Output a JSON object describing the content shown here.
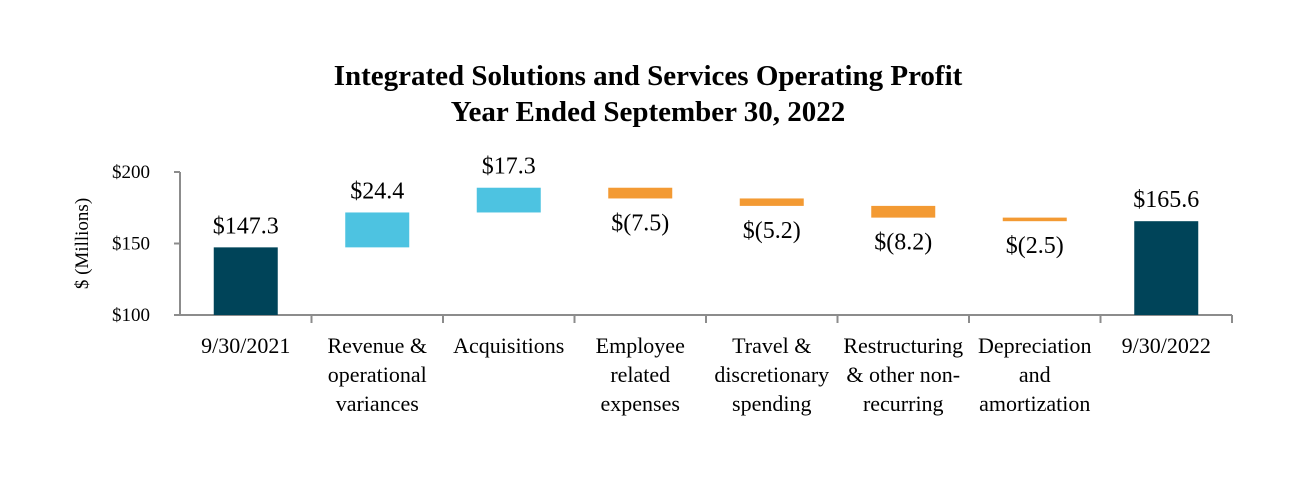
{
  "chart_data": {
    "type": "waterfall",
    "title": "Integrated Solutions and Services Operating Profit",
    "subtitle": "Year Ended September 30, 2022",
    "ylabel": "$ (Millions)",
    "ylim": [
      100,
      200
    ],
    "yticks": [
      {
        "value": 100,
        "label": "$100"
      },
      {
        "value": 150,
        "label": "$150"
      },
      {
        "value": 200,
        "label": "$200"
      }
    ],
    "colors": {
      "total": "#004459",
      "increase": "#4DC3E1",
      "decrease": "#F39A33"
    },
    "steps": [
      {
        "category": [
          "9/30/2021"
        ],
        "kind": "total",
        "value": 147.3,
        "label": "$147.3"
      },
      {
        "category": [
          "Revenue &",
          "operational",
          "variances"
        ],
        "kind": "increase",
        "value": 24.4,
        "label": "$24.4"
      },
      {
        "category": [
          "Acquisitions"
        ],
        "kind": "increase",
        "value": 17.3,
        "label": "$17.3"
      },
      {
        "category": [
          "Employee",
          "related",
          "expenses"
        ],
        "kind": "decrease",
        "value": -7.5,
        "label": "$(7.5)"
      },
      {
        "category": [
          "Travel &",
          "discretionary",
          "spending"
        ],
        "kind": "decrease",
        "value": -5.2,
        "label": "$(5.2)"
      },
      {
        "category": [
          "Restructuring",
          "& other non-",
          "recurring"
        ],
        "kind": "decrease",
        "value": -8.2,
        "label": "$(8.2)"
      },
      {
        "category": [
          "Depreciation",
          "and",
          "amortization"
        ],
        "kind": "decrease",
        "value": -2.5,
        "label": "$(2.5)"
      },
      {
        "category": [
          "9/30/2022"
        ],
        "kind": "total",
        "value": 165.6,
        "label": "$165.6"
      }
    ]
  }
}
